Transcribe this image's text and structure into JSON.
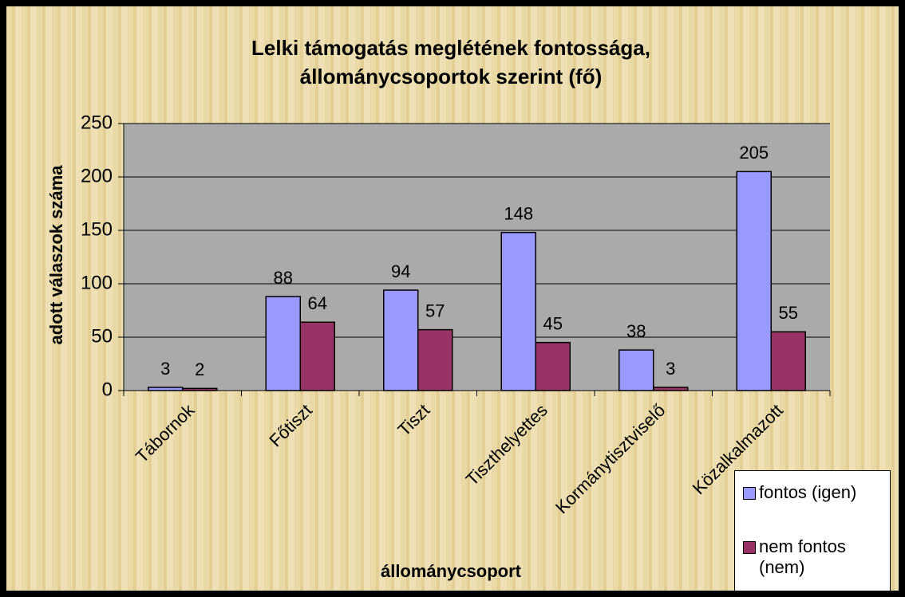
{
  "chart_data": {
    "type": "bar",
    "title": [
      "Lelki támogatás meglétének fontossága,",
      "állománycsoportok szerint (fő)"
    ],
    "categories": [
      "Tábornok",
      "Főtiszt",
      "Tiszt",
      "Tiszthelyettes",
      "Kormánytisztviselő",
      "Közalkalmazott"
    ],
    "series": [
      {
        "name": "fontos (igen)",
        "color": "#9999ff",
        "values": [
          3,
          88,
          94,
          148,
          38,
          205
        ]
      },
      {
        "name": "nem fontos (nem)",
        "color": "#993366",
        "values": [
          2,
          64,
          57,
          45,
          3,
          55
        ]
      }
    ],
    "xlabel": "állománycsoport",
    "ylabel": "adott válaszok száma",
    "ylim": [
      0,
      250
    ],
    "yticks": [
      0,
      50,
      100,
      150,
      200,
      250
    ],
    "grid": true,
    "legend": "lower right"
  }
}
